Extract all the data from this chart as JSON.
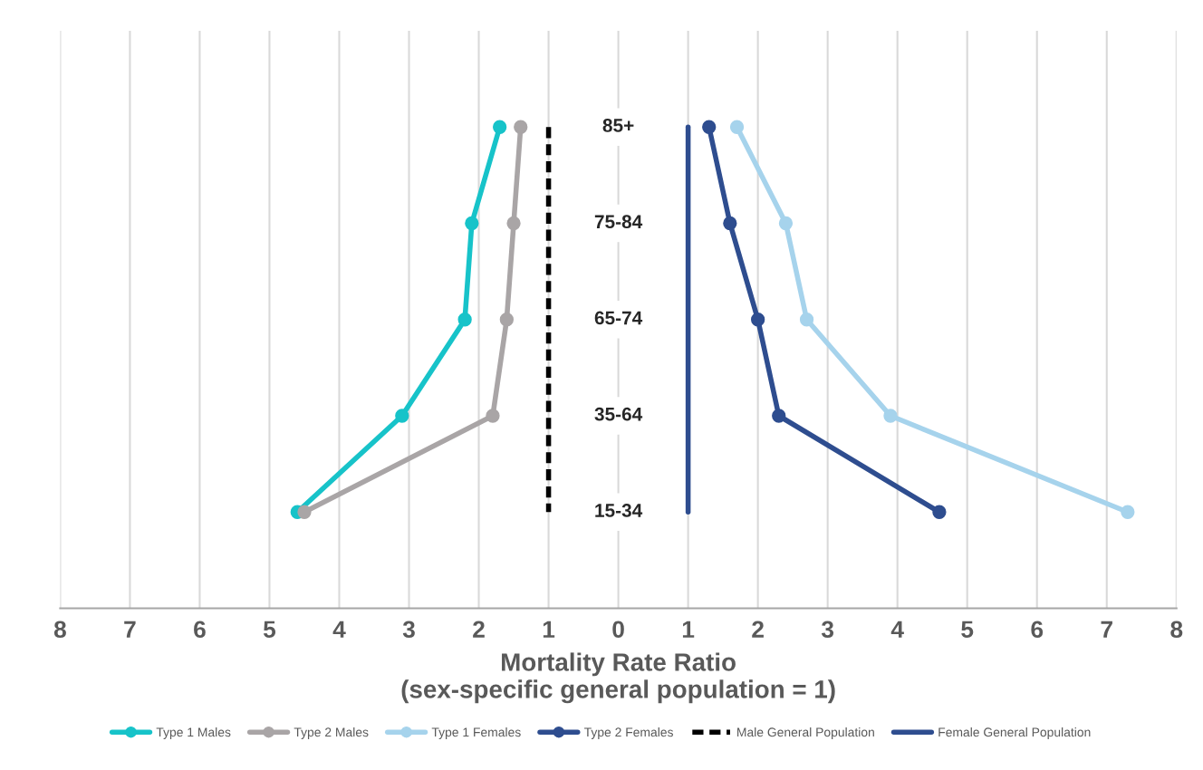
{
  "chart_data": {
    "type": "line",
    "orientation": "horizontal",
    "categories": [
      "85+",
      "75-84",
      "65-74",
      "35-64",
      "15-34"
    ],
    "xlabel": "Mortality Rate Ratio\n(sex-specific general population = 1)",
    "xlim": [
      -8,
      8
    ],
    "xticks": [
      {
        "value": -8,
        "label": "8"
      },
      {
        "value": -7,
        "label": "7"
      },
      {
        "value": -6,
        "label": "6"
      },
      {
        "value": -5,
        "label": "5"
      },
      {
        "value": -4,
        "label": "4"
      },
      {
        "value": -3,
        "label": "3"
      },
      {
        "value": -2,
        "label": "2"
      },
      {
        "value": -1,
        "label": "1"
      },
      0,
      1,
      2,
      3,
      4,
      5,
      6,
      7,
      8
    ],
    "grid": "x",
    "legend": "bottom",
    "series": [
      {
        "name": "Type 1 Males",
        "color": "#17c3c9",
        "marker": "circle",
        "line_style": "solid",
        "values": [
          -1.7,
          -2.1,
          -2.2,
          -3.1,
          -4.6
        ]
      },
      {
        "name": "Type 2 Males",
        "color": "#a9a5a6",
        "marker": "circle",
        "line_style": "solid",
        "values": [
          -1.4,
          -1.5,
          -1.6,
          -1.8,
          -4.5
        ]
      },
      {
        "name": "Type 1 Females",
        "color": "#a6d3ec",
        "marker": "circle",
        "line_style": "solid",
        "values": [
          1.7,
          2.4,
          2.7,
          3.9,
          7.3
        ]
      },
      {
        "name": "Type 2 Females",
        "color": "#2e4d8f",
        "marker": "circle",
        "line_style": "solid",
        "values": [
          1.3,
          1.6,
          2.0,
          2.3,
          4.6
        ]
      },
      {
        "name": "Male General Population",
        "color": "#000000",
        "marker": "none",
        "line_style": "dashed",
        "values": [
          -1,
          -1,
          -1,
          -1,
          -1
        ]
      },
      {
        "name": "Female General Population",
        "color": "#2e4d8f",
        "marker": "none",
        "line_style": "solid",
        "values": [
          1,
          1,
          1,
          1,
          1
        ]
      }
    ]
  }
}
